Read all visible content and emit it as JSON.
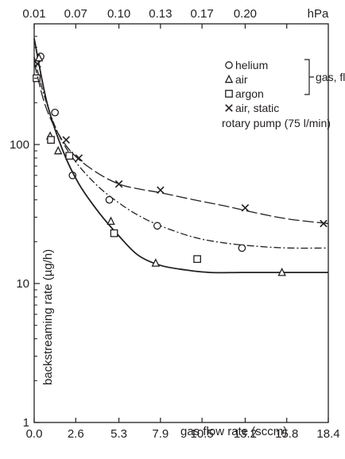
{
  "chart_data": {
    "type": "scatter",
    "title": "",
    "xlabel": "gas flow rate (sccm)",
    "ylabel": "backstreaming rate (µg/h)",
    "x_top_unit": "hPa",
    "yscale": "log",
    "xlim": [
      0,
      18.4
    ],
    "ylim": [
      1,
      600
    ],
    "x_ticks": [
      0.0,
      2.6,
      5.3,
      7.9,
      10.5,
      13.2,
      15.8,
      18.4
    ],
    "x_tick_labels": [
      "0.0",
      "2.6",
      "5.3",
      "7.9",
      "10.5",
      "13.2",
      "15.8",
      "18.4"
    ],
    "x_top_ticks": [
      0.0,
      2.6,
      5.3,
      7.9,
      10.5,
      13.2,
      15.8
    ],
    "x_top_tick_labels": [
      "0.01",
      "0.07",
      "0.10",
      "0.13",
      "0.17",
      "0.20",
      "hPa"
    ],
    "y_ticks": [
      1,
      10,
      100
    ],
    "y_tick_labels": [
      "1",
      "10",
      "100"
    ],
    "grid": false,
    "legend": {
      "placement": "top-right",
      "group_label": "gas, flowing",
      "note": "rotary pump (75 l/min)"
    },
    "series": [
      {
        "name": "helium",
        "marker": "circle",
        "line": "dash-dot",
        "x": [
          0.4,
          1.3,
          2.4,
          4.7,
          7.7,
          13.0
        ],
        "y": [
          430,
          170,
          60,
          40,
          26,
          18
        ],
        "curve_x": [
          0.0,
          0.6,
          1.5,
          2.6,
          4.0,
          5.3,
          6.5,
          7.9,
          10.0,
          12.0,
          14.0,
          16.0,
          18.4
        ],
        "curve_y": [
          430,
          230,
          120,
          75,
          50,
          38,
          31,
          26,
          21.5,
          19.5,
          18.5,
          18,
          18
        ]
      },
      {
        "name": "air",
        "marker": "triangle",
        "line": "solid",
        "x": [
          0.3,
          1.0,
          1.5,
          4.8,
          7.6,
          15.5
        ],
        "y": [
          420,
          115,
          90,
          28,
          14,
          12
        ],
        "curve_x": [
          0.0,
          0.8,
          1.8,
          2.8,
          4.0,
          5.3,
          6.5,
          7.9,
          9.5,
          11.0,
          13.0,
          15.8,
          18.4
        ],
        "curve_y": [
          580,
          200,
          90,
          52,
          33,
          22,
          16,
          13.5,
          12.5,
          12,
          12,
          12,
          12
        ]
      },
      {
        "name": "argon",
        "marker": "square",
        "line": "none",
        "x": [
          0.15,
          1.05,
          2.2,
          5.0,
          10.2
        ],
        "y": [
          300,
          108,
          83,
          23,
          15
        ],
        "curve_x": [],
        "curve_y": []
      },
      {
        "name": "air, static",
        "marker": "x",
        "line": "long-dash",
        "x": [
          0.2,
          2.0,
          2.8,
          5.3,
          7.9,
          13.2,
          18.1
        ],
        "y": [
          380,
          108,
          80,
          52,
          47,
          35,
          27
        ],
        "curve_x": [
          0.0,
          0.7,
          1.6,
          2.6,
          4.0,
          5.3,
          6.5,
          7.9,
          10.0,
          12.0,
          14.0,
          16.0,
          18.4
        ],
        "curve_y": [
          390,
          190,
          115,
          82,
          62,
          52,
          48,
          45,
          40,
          36,
          32,
          29,
          27
        ]
      }
    ]
  }
}
